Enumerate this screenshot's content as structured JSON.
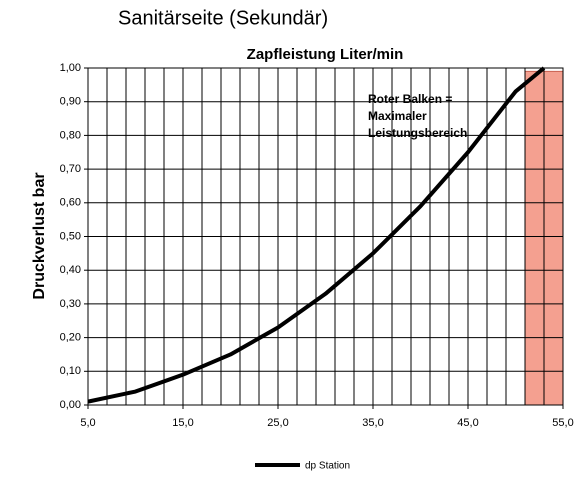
{
  "heading": "Sanitärseite (Sekundär)",
  "chart_data": {
    "type": "line",
    "title": "Zapfleistung Liter/min",
    "ylabel": "Druckverlust bar",
    "x": [
      5,
      10,
      15,
      20,
      25,
      30,
      35,
      40,
      45,
      50,
      53
    ],
    "series": [
      {
        "name": "dp Station",
        "color": "#000000",
        "values": [
          0.01,
          0.04,
          0.09,
          0.15,
          0.23,
          0.33,
          0.45,
          0.59,
          0.75,
          0.93,
          1.0
        ]
      }
    ],
    "xlim": [
      5,
      55
    ],
    "ylim": [
      0,
      1
    ],
    "xticks": [
      {
        "value": 5,
        "label": "5,0"
      },
      {
        "value": 15,
        "label": "15,0"
      },
      {
        "value": 25,
        "label": "25,0"
      },
      {
        "value": 35,
        "label": "35,0"
      },
      {
        "value": 45,
        "label": "45,0"
      },
      {
        "value": 55,
        "label": "55,0"
      }
    ],
    "yticks": [
      {
        "value": 0,
        "label": "0,00"
      },
      {
        "value": 0.1,
        "label": "0,10"
      },
      {
        "value": 0.2,
        "label": "0,20"
      },
      {
        "value": 0.3,
        "label": "0,30"
      },
      {
        "value": 0.4,
        "label": "0,40"
      },
      {
        "value": 0.5,
        "label": "0,50"
      },
      {
        "value": 0.6,
        "label": "0,60"
      },
      {
        "value": 0.7,
        "label": "0,70"
      },
      {
        "value": 0.8,
        "label": "0,80"
      },
      {
        "value": 0.9,
        "label": "0,90"
      },
      {
        "value": 1,
        "label": "1,00"
      }
    ],
    "xgrid": [
      5,
      7,
      9,
      11,
      13,
      15,
      17,
      19,
      21,
      23,
      25,
      27,
      29,
      31,
      33,
      35,
      37,
      39,
      41,
      43,
      45,
      47,
      49,
      51,
      53,
      55
    ],
    "grid": true,
    "band": {
      "x": [
        51,
        55
      ],
      "y": [
        0,
        0.99
      ],
      "color": "#f4a090"
    },
    "annotation": [
      "Roter Balken =",
      "Maximaler",
      "Leistungsbereich"
    ],
    "legend": "bottom"
  }
}
